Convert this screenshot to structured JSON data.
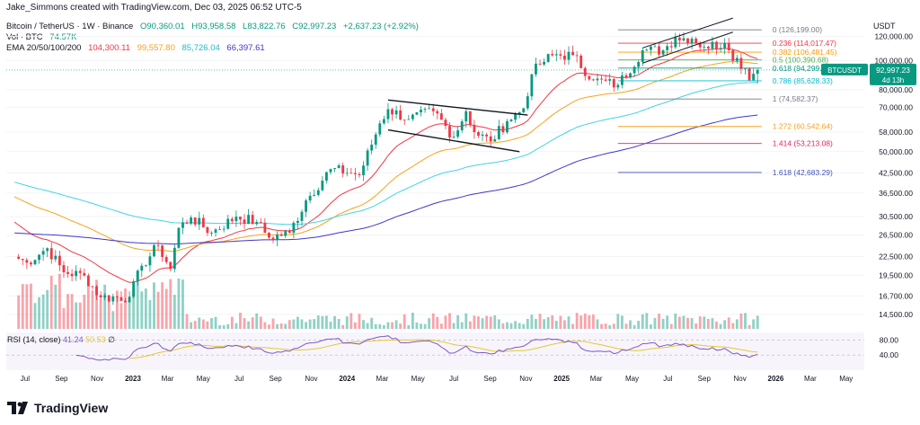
{
  "header": {
    "credit": "Jake_Simmons created with TradingView.com, Dec 03, 2025 06:52 UTC-5",
    "symbol_line": {
      "title": "Bitcoin / TetherUS · 1W · Binance",
      "open": "O90,360.01",
      "high": "H93,958.58",
      "low": "L83,822.76",
      "close": "C92,997.23",
      "change": "+2,637.23 (+2.92%)"
    },
    "vol_line": {
      "label": "Vol · BTC",
      "value": "74.57K"
    },
    "ema_line": {
      "label": "EMA 20/50/100/200",
      "ema20": "104,300.11",
      "ema50": "99,557.80",
      "ema100": "85,726.04",
      "ema200": "66,397.61"
    },
    "axis_title": "USDT"
  },
  "rsi": {
    "label": "RSI (14, close)",
    "value": "41.24",
    "ma": "50.53",
    "symbol": "∅",
    "levels": [
      "80.00",
      "40.00"
    ]
  },
  "price_tag": {
    "ticker": "BTCUSDT",
    "price": "92,997.23",
    "countdown": "4d 13h"
  },
  "brand": {
    "logo_text": "TradingView"
  },
  "colors": {
    "up": "#089981",
    "down": "#f23645",
    "ema20": "#f23645",
    "ema50": "#f7a21b",
    "ema100": "#41d4e4",
    "ema200": "#3f37c9",
    "rsi": "#7e57c2",
    "rsi_ma": "#e5c734"
  },
  "chart_data": {
    "type": "candlestick",
    "scale": "log",
    "ylim": [
      13000,
      140000
    ],
    "price_ticks": [
      "120,000.00",
      "100,000.00",
      "80,000.00",
      "70,000.00",
      "58,000.00",
      "50,000.00",
      "42,500.00",
      "36,500.00",
      "30,500.00",
      "26,500.00",
      "22,500.00",
      "19,500.00",
      "16,700.00",
      "14,500.00"
    ],
    "price_tick_values": [
      120000,
      100000,
      80000,
      70000,
      58000,
      50000,
      42500,
      36500,
      30500,
      26500,
      22500,
      19500,
      16700,
      14500
    ],
    "time_ticks": [
      "Jul",
      "Sep",
      "Nov",
      "2023",
      "Mar",
      "May",
      "Jul",
      "Sep",
      "Nov",
      "2024",
      "Mar",
      "May",
      "Jul",
      "Sep",
      "Nov",
      "2025",
      "Mar",
      "May",
      "Jul",
      "Sep",
      "Nov",
      "2026",
      "Mar",
      "May"
    ],
    "time_tick_dates": [
      "2022-07-01",
      "2022-09-01",
      "2022-11-01",
      "2023-01-01",
      "2023-03-01",
      "2023-05-01",
      "2023-07-01",
      "2023-09-01",
      "2023-11-01",
      "2024-01-01",
      "2024-03-01",
      "2024-05-01",
      "2024-07-01",
      "2024-09-01",
      "2024-11-01",
      "2025-01-01",
      "2025-03-01",
      "2025-05-01",
      "2025-07-01",
      "2025-09-01",
      "2025-11-01",
      "2026-01-01",
      "2026-03-01",
      "2026-05-01"
    ],
    "weekly_close_anchors": [
      {
        "date": "2022-06-13",
        "close": 22500
      },
      {
        "date": "2022-07-04",
        "close": 21500
      },
      {
        "date": "2022-08-08",
        "close": 24000
      },
      {
        "date": "2022-09-05",
        "close": 20000
      },
      {
        "date": "2022-10-10",
        "close": 19500
      },
      {
        "date": "2022-11-07",
        "close": 16500
      },
      {
        "date": "2022-12-26",
        "close": 16600
      },
      {
        "date": "2023-01-16",
        "close": 21000
      },
      {
        "date": "2023-02-13",
        "close": 24500
      },
      {
        "date": "2023-03-06",
        "close": 20500
      },
      {
        "date": "2023-03-20",
        "close": 28000
      },
      {
        "date": "2023-04-10",
        "close": 30300
      },
      {
        "date": "2023-05-15",
        "close": 27000
      },
      {
        "date": "2023-06-26",
        "close": 30500
      },
      {
        "date": "2023-07-31",
        "close": 29300
      },
      {
        "date": "2023-08-21",
        "close": 26000
      },
      {
        "date": "2023-09-25",
        "close": 27000
      },
      {
        "date": "2023-10-23",
        "close": 34500
      },
      {
        "date": "2023-12-04",
        "close": 43800
      },
      {
        "date": "2024-01-08",
        "close": 42500
      },
      {
        "date": "2024-01-22",
        "close": 41800
      },
      {
        "date": "2024-02-26",
        "close": 62000
      },
      {
        "date": "2024-03-11",
        "close": 69000
      },
      {
        "date": "2024-04-15",
        "close": 64000
      },
      {
        "date": "2024-05-27",
        "close": 68000
      },
      {
        "date": "2024-07-01",
        "close": 56000
      },
      {
        "date": "2024-07-22",
        "close": 68000
      },
      {
        "date": "2024-08-05",
        "close": 58000
      },
      {
        "date": "2024-09-02",
        "close": 54000
      },
      {
        "date": "2024-09-30",
        "close": 63000
      },
      {
        "date": "2024-10-28",
        "close": 69500
      },
      {
        "date": "2024-11-11",
        "close": 90000
      },
      {
        "date": "2024-11-25",
        "close": 97000
      },
      {
        "date": "2024-12-16",
        "close": 104000
      },
      {
        "date": "2025-01-20",
        "close": 104000
      },
      {
        "date": "2025-02-24",
        "close": 86000
      },
      {
        "date": "2025-04-07",
        "close": 83000
      },
      {
        "date": "2025-05-19",
        "close": 108000
      },
      {
        "date": "2025-06-23",
        "close": 108000
      },
      {
        "date": "2025-07-14",
        "close": 119000
      },
      {
        "date": "2025-08-11",
        "close": 118000
      },
      {
        "date": "2025-09-01",
        "close": 111000
      },
      {
        "date": "2025-10-06",
        "close": 114000
      },
      {
        "date": "2025-10-13",
        "close": 108000
      },
      {
        "date": "2025-11-10",
        "close": 94000
      },
      {
        "date": "2025-11-17",
        "close": 86000
      },
      {
        "date": "2025-11-24",
        "close": 90360
      },
      {
        "date": "2025-12-01",
        "close": 92997
      }
    ],
    "last_candle": {
      "date": "2025-12-01",
      "open": 90360.01,
      "high": 93958.58,
      "low": 83822.76,
      "close": 92997.23
    },
    "ema": {
      "ema20": 104300.11,
      "ema50": 99557.8,
      "ema100": 85726.04,
      "ema200": 66397.61
    },
    "fibonacci": [
      {
        "level": "0",
        "price": 126199.0,
        "label": "0 (126,199.00)",
        "color": "#787b86"
      },
      {
        "level": "0.236",
        "price": 114017.47,
        "label": "0.236 (114,017.47)",
        "color": "#f23645"
      },
      {
        "level": "0.382",
        "price": 106481.45,
        "label": "0.382 (106,481.45)",
        "color": "#ff9800"
      },
      {
        "level": "0.5",
        "price": 100390.68,
        "label": "0.5 (100,390.68)",
        "color": "#4caf50"
      },
      {
        "level": "0.618",
        "price": 94299.91,
        "label": "0.618 (94,299.",
        "color": "#089981"
      },
      {
        "level": "0.786",
        "price": 85628.33,
        "label": "0.786 (85,628.33)",
        "color": "#00bcd4"
      },
      {
        "level": "1",
        "price": 74582.37,
        "label": "1 (74,582.37)",
        "color": "#787b86"
      },
      {
        "level": "1.272",
        "price": 60542.64,
        "label": "1.272 (60,542.64)",
        "color": "#f7a21b"
      },
      {
        "level": "1.414",
        "price": 53213.08,
        "label": "1.414 (53,213.08)",
        "color": "#e91e63"
      },
      {
        "level": "1.618",
        "price": 42683.29,
        "label": "1.618 (42,683.29)",
        "color": "#3f51b5"
      }
    ],
    "flag_channel": [
      {
        "name": "upper",
        "from": {
          "date": "2024-03-11",
          "price": 74000
        },
        "to": {
          "date": "2024-11-04",
          "price": 66000
        }
      },
      {
        "name": "lower",
        "from": {
          "date": "2024-03-11",
          "price": 59000
        },
        "to": {
          "date": "2024-10-21",
          "price": 50000
        }
      }
    ],
    "rising_channel": [
      {
        "name": "upper",
        "from": {
          "date": "2025-05-19",
          "price": 110000
        },
        "to": {
          "date": "2025-10-20",
          "price": 138000
        }
      },
      {
        "name": "lower",
        "from": {
          "date": "2025-05-19",
          "price": 98000
        },
        "to": {
          "date": "2025-10-20",
          "price": 124000
        }
      }
    ],
    "rsi_scale": [
      0,
      100
    ]
  }
}
